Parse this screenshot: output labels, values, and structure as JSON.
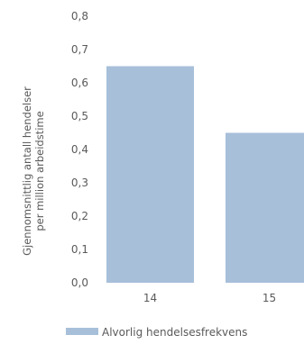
{
  "chart_data": {
    "type": "bar",
    "categories": [
      "14",
      "15"
    ],
    "series": [
      {
        "name": "Alvorlig hendelsesfrekvens",
        "values": [
          0.65,
          0.45
        ],
        "color": "#a7bfd9"
      }
    ],
    "ylabel_lines": [
      "Gjennomsnittlig antall hendelser",
      "per million arbeidstime"
    ],
    "ylim": [
      0,
      0.8
    ],
    "yticks": [
      "0,0",
      "0,1",
      "0,2",
      "0,3",
      "0,4",
      "0,5",
      "0,6",
      "0,7",
      "0,8"
    ],
    "grid": false,
    "legend_position": "bottom-left"
  }
}
